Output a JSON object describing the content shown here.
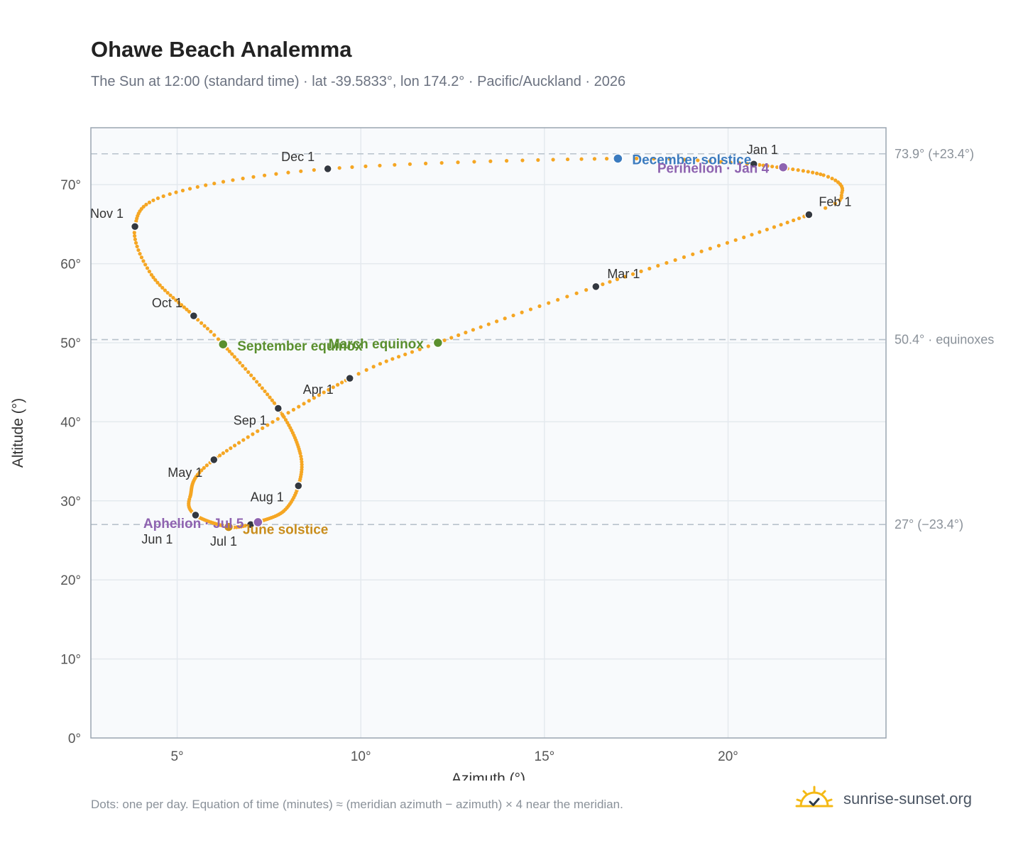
{
  "title": "Ohawe Beach Analemma",
  "subtitle": "The Sun at 12:00 (standard time) · lat -39.5833°, lon 174.2° · Pacific/Auckland · 2026",
  "footnote": "Dots: one per day. Equation of time (minutes) ≈ (meridian azimuth − azimuth) × 4 near the meridian.",
  "brand": {
    "name": "sunrise-sunset.org",
    "icon": "sun-check-icon"
  },
  "colors": {
    "path": "#f5a623",
    "month_marker": "#333840",
    "equinox": "#5a8f2e",
    "solstice_dec": "#3b7bbf",
    "solstice_jun": "#c98d1c",
    "apsis": "#8e63b0",
    "reference_line": "#b8c2cc",
    "grid": "#e4e9ee",
    "plot_bg": "#f8fafc",
    "axis": "#9aa5b1"
  },
  "chart_data": {
    "type": "scatter",
    "xlabel": "Azimuth (°)",
    "ylabel": "Altitude (°)",
    "xlim": [
      2.65,
      24.3
    ],
    "ylim": [
      0,
      77.2
    ],
    "x_ticks": [
      5,
      10,
      15,
      20
    ],
    "x_tick_labels": [
      "5°",
      "10°",
      "15°",
      "20°"
    ],
    "y_ticks": [
      0,
      10,
      20,
      30,
      40,
      50,
      60,
      70
    ],
    "y_tick_labels": [
      "0°",
      "10°",
      "20°",
      "30°",
      "40°",
      "50°",
      "60°",
      "70°"
    ],
    "grid": true,
    "reference_lines": [
      {
        "y": 73.9,
        "label": "73.9° (+23.4°)"
      },
      {
        "y": 50.4,
        "label": "50.4° · equinoxes"
      },
      {
        "y": 27,
        "label": "27° (−23.4°)"
      }
    ],
    "month_markers": [
      {
        "label": "Jan 1",
        "x": 20.7,
        "y": 72.6
      },
      {
        "label": "Feb 1",
        "x": 22.2,
        "y": 66.2
      },
      {
        "label": "Mar 1",
        "x": 16.4,
        "y": 57.1
      },
      {
        "label": "Apr 1",
        "x": 9.7,
        "y": 45.5
      },
      {
        "label": "May 1",
        "x": 6.0,
        "y": 35.2
      },
      {
        "label": "Jun 1",
        "x": 5.5,
        "y": 28.2
      },
      {
        "label": "Jul 1",
        "x": 7.0,
        "y": 27.0
      },
      {
        "label": "Aug 1",
        "x": 8.3,
        "y": 31.9
      },
      {
        "label": "Sep 1",
        "x": 7.75,
        "y": 41.7
      },
      {
        "label": "Oct 1",
        "x": 5.45,
        "y": 53.4
      },
      {
        "label": "Nov 1",
        "x": 3.85,
        "y": 64.7
      },
      {
        "label": "Dec 1",
        "x": 9.1,
        "y": 72.0
      }
    ],
    "events": [
      {
        "label": "December solstice",
        "x": 17.0,
        "y": 73.3,
        "color_key": "solstice_dec"
      },
      {
        "label": "Perihelion · Jan 4",
        "x": 21.5,
        "y": 72.2,
        "color_key": "apsis"
      },
      {
        "label": "March equinox",
        "x": 12.1,
        "y": 50.0,
        "color_key": "equinox"
      },
      {
        "label": "September equinox",
        "x": 6.25,
        "y": 49.8,
        "color_key": "equinox"
      },
      {
        "label": "June solstice",
        "x": 6.4,
        "y": 26.7,
        "color_key": "solstice_jun"
      },
      {
        "label": "Aphelion · Jul 5",
        "x": 7.2,
        "y": 27.3,
        "color_key": "apsis"
      }
    ],
    "path_anchors": [
      {
        "d": 0,
        "x": 20.7,
        "y": 72.6
      },
      {
        "d": 16,
        "x": 22.6,
        "y": 71.2
      },
      {
        "d": 25,
        "x": 23.1,
        "y": 69.0
      },
      {
        "d": 31,
        "x": 22.2,
        "y": 66.2
      },
      {
        "d": 59,
        "x": 16.4,
        "y": 57.1
      },
      {
        "d": 78,
        "x": 12.1,
        "y": 50.0
      },
      {
        "d": 90,
        "x": 9.7,
        "y": 45.5
      },
      {
        "d": 120,
        "x": 6.0,
        "y": 35.2
      },
      {
        "d": 140,
        "x": 5.35,
        "y": 30.5
      },
      {
        "d": 151,
        "x": 5.5,
        "y": 28.2
      },
      {
        "d": 171,
        "x": 6.4,
        "y": 26.7
      },
      {
        "d": 181,
        "x": 7.0,
        "y": 27.0
      },
      {
        "d": 185,
        "x": 7.2,
        "y": 27.3
      },
      {
        "d": 200,
        "x": 7.9,
        "y": 28.7
      },
      {
        "d": 212,
        "x": 8.3,
        "y": 31.9
      },
      {
        "d": 225,
        "x": 8.35,
        "y": 36.0
      },
      {
        "d": 243,
        "x": 7.75,
        "y": 41.7
      },
      {
        "d": 265,
        "x": 6.25,
        "y": 49.8
      },
      {
        "d": 273,
        "x": 5.45,
        "y": 53.4
      },
      {
        "d": 290,
        "x": 4.3,
        "y": 58.6
      },
      {
        "d": 304,
        "x": 3.85,
        "y": 64.7
      },
      {
        "d": 318,
        "x": 4.8,
        "y": 68.8
      },
      {
        "d": 334,
        "x": 9.1,
        "y": 72.0
      },
      {
        "d": 354,
        "x": 17.0,
        "y": 73.3
      },
      {
        "d": 365,
        "x": 20.7,
        "y": 72.6
      }
    ]
  }
}
